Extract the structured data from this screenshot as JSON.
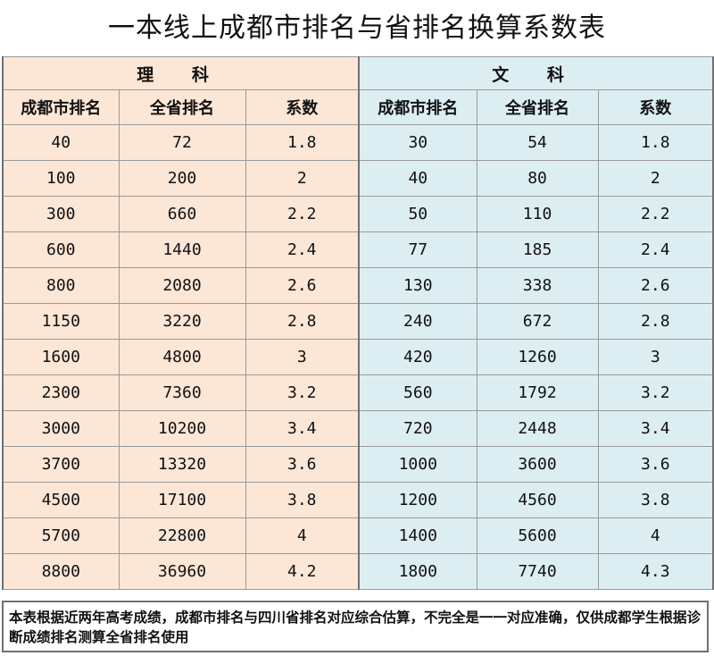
{
  "title": "一本线上成都市排名与省排名换算系数表",
  "groups": {
    "science": "理 科",
    "arts": "文 科"
  },
  "headers": {
    "science": [
      "成都市排名",
      "全省排名",
      "系数"
    ],
    "arts": [
      "成都市排名",
      "全省排名",
      "系数"
    ]
  },
  "rows": [
    [
      "40",
      "72",
      "1.8",
      "30",
      "54",
      "1.8"
    ],
    [
      "100",
      "200",
      "2",
      "40",
      "80",
      "2"
    ],
    [
      "300",
      "660",
      "2.2",
      "50",
      "110",
      "2.2"
    ],
    [
      "600",
      "1440",
      "2.4",
      "77",
      "185",
      "2.4"
    ],
    [
      "800",
      "2080",
      "2.6",
      "130",
      "338",
      "2.6"
    ],
    [
      "1150",
      "3220",
      "2.8",
      "240",
      "672",
      "2.8"
    ],
    [
      "1600",
      "4800",
      "3",
      "420",
      "1260",
      "3"
    ],
    [
      "2300",
      "7360",
      "3.2",
      "560",
      "1792",
      "3.2"
    ],
    [
      "3000",
      "10200",
      "3.4",
      "720",
      "2448",
      "3.4"
    ],
    [
      "3700",
      "13320",
      "3.6",
      "1000",
      "3600",
      "3.6"
    ],
    [
      "4500",
      "17100",
      "3.8",
      "1200",
      "4560",
      "3.8"
    ],
    [
      "5700",
      "22800",
      "4",
      "1400",
      "5600",
      "4"
    ],
    [
      "8800",
      "36960",
      "4.2",
      "1800",
      "7740",
      "4.3"
    ]
  ],
  "note": "本表根据近两年高考成绩，成都市排名与四川省排名对应综合估算，不完全是一一对应准确，仅供成都学生根据诊断成绩排名测算全省排名使用",
  "colors": {
    "science_bg": "#fce6d6",
    "arts_bg": "#ddeef3",
    "border": "#9a9a9a"
  }
}
